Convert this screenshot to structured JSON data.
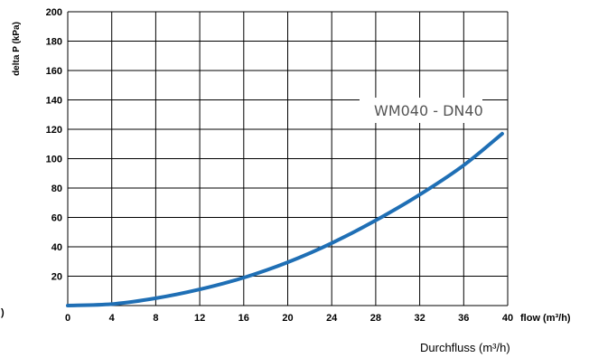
{
  "chart_data": {
    "type": "line",
    "xlabel": "flow (m³/h)",
    "ylabel": "delta P (kPa)",
    "bottom_title": "Durchfluss (m³/h)",
    "annotation": "WM040 - DN40",
    "stray_mark": ")",
    "xlim": [
      0,
      40
    ],
    "ylim": [
      0,
      200
    ],
    "x_ticks": [
      0,
      4,
      8,
      12,
      16,
      20,
      24,
      28,
      32,
      36,
      40
    ],
    "y_ticks": [
      20,
      40,
      60,
      80,
      100,
      120,
      140,
      160,
      180,
      200
    ],
    "grid": true,
    "series": [
      {
        "color": "#1f6fb5",
        "x": [
          0,
          4,
          8,
          12,
          16,
          20,
          24,
          28,
          32,
          36,
          39.5
        ],
        "y": [
          0,
          1,
          5,
          11,
          19,
          29.5,
          42.5,
          58,
          75.5,
          95.5,
          117
        ]
      }
    ]
  }
}
